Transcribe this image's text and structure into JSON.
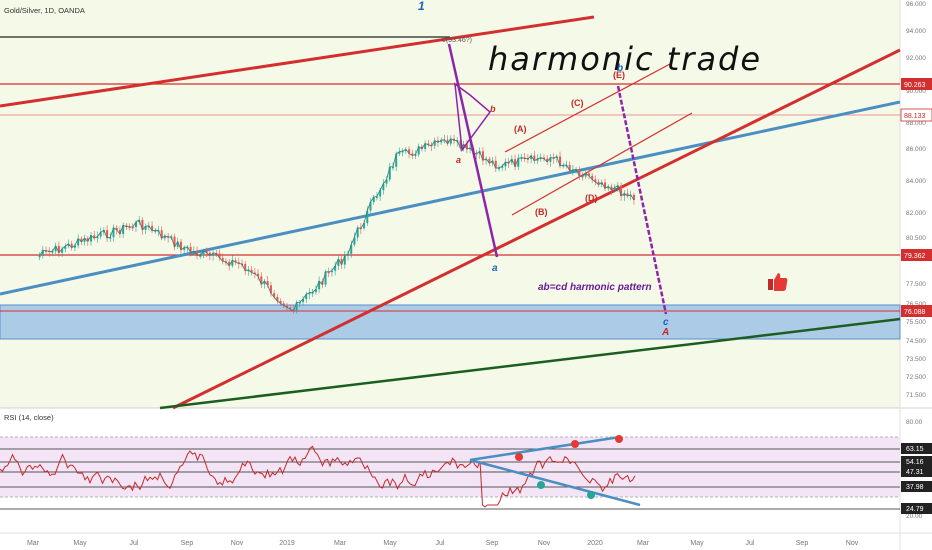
{
  "symbol_title": "Gold/Silver, 1D, OANDA",
  "wave_marker": "1",
  "handwritten_note": "harmonic trade",
  "pattern_label": "ab=cd harmonic pattern",
  "peak_label": "0(93.46?)",
  "wave_labels": {
    "a_upper": "a",
    "b_upper": "b",
    "a_lower": "a",
    "b_right": "b",
    "c": "c",
    "A": "A",
    "wA": "(A)",
    "wB": "(B)",
    "wC": "(C)",
    "wD": "(D)",
    "wE": "(E)"
  },
  "rsi": {
    "label": "RSI (14, close)",
    "ticks": [
      "80.00",
      "20.00"
    ],
    "levels": [
      "63.15",
      "54.16",
      "47.31",
      "37.98",
      "24.79"
    ]
  },
  "price_ticks": [
    "96.000",
    "94.000",
    "92.000",
    "90.000",
    "88.000",
    "86.000",
    "84.000",
    "82.000",
    "80.500",
    "79.000",
    "77.500",
    "76.500",
    "75.500",
    "74.500",
    "73.500",
    "72.500",
    "71.500"
  ],
  "highlighted_prices": [
    "90.263",
    "88.133",
    "79.362",
    "76.088"
  ],
  "x_labels": [
    "Mar",
    "May",
    "Jul",
    "Sep",
    "Nov",
    "2019",
    "Mar",
    "May",
    "Jul",
    "Sep",
    "Nov",
    "2020",
    "Mar",
    "May",
    "Jul",
    "Sep",
    "Nov"
  ],
  "colors": {
    "up": "#26a69a",
    "down": "#ef5350",
    "trend_red": "#d32f2f",
    "trend_blue": "#4a8ec2",
    "trend_green": "#1b5e20",
    "purple": "#8e24aa",
    "zone": "#9fc3e6",
    "rsi_line": "#c62828",
    "rsi_band": "#f3e5f5",
    "chart_bg": "#f5f9e8"
  },
  "chart_data": {
    "type": "candlestick",
    "title": "Gold/Silver, 1D, OANDA",
    "y_range": [
      71,
      96
    ],
    "path_x": [
      "2018-02",
      "2018-04",
      "2018-05",
      "2018-06",
      "2018-07",
      "2018-08",
      "2018-09",
      "2018-10",
      "2018-11",
      "2018-12",
      "2019-01",
      "2019-02",
      "2019-03",
      "2019-04",
      "2019-05",
      "2019-06",
      "2019-07",
      "2019-08",
      "2019-09",
      "2019-10",
      "2019-11",
      "2019-12",
      "2020-01",
      "2020-02"
    ],
    "path_close": [
      79.5,
      81.5,
      79.8,
      79.0,
      76.2,
      79.5,
      85.5,
      86.5,
      85.0,
      85.5,
      84.0,
      82.5,
      85.0,
      86.0,
      89.5,
      93.0,
      85.8,
      87.7,
      79.4,
      84.5,
      83.5,
      87.8,
      84.2,
      89.8
    ],
    "rsi_series_hint": "RSI(14) oscillating 20-80",
    "key_levels": [
      90.263,
      88.133,
      79.362,
      76.088
    ]
  }
}
